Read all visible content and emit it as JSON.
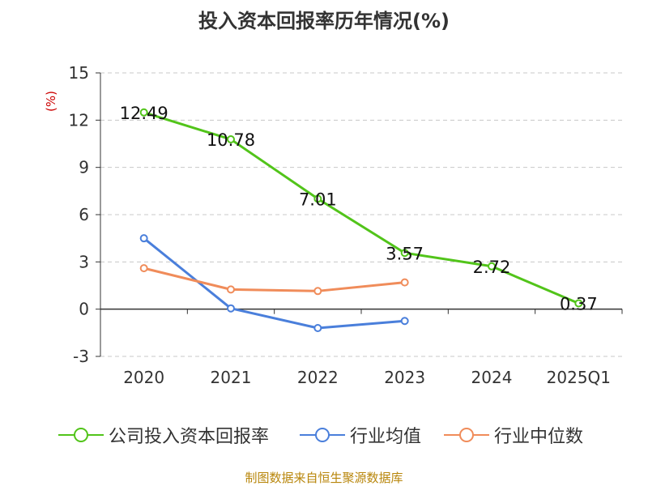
{
  "title": "投入资本回报率历年情况(%)",
  "source": "制图数据来自恒生聚源数据库",
  "chart_data": {
    "type": "line",
    "title": "投入资本回报率历年情况(%)",
    "ylabel": "(%)",
    "categories": [
      "2020",
      "2021",
      "2022",
      "2023",
      "2024",
      "2025Q1"
    ],
    "y_ticks": [
      15,
      12,
      9,
      6,
      3,
      0,
      -3
    ],
    "ylim": [
      -3,
      15
    ],
    "grid": true,
    "legend_position": "bottom",
    "series": [
      {
        "name": "公司投入资本回报率",
        "color": "#52c41a",
        "values": [
          12.49,
          10.78,
          7.01,
          3.57,
          2.72,
          0.37
        ],
        "labels": [
          "12.49",
          "10.78",
          "7.01",
          "3.57",
          "2.72",
          "0.37"
        ]
      },
      {
        "name": "行业均值",
        "color": "#4a7fdb",
        "values": [
          4.5,
          0.05,
          -1.2,
          -0.75,
          null,
          null
        ]
      },
      {
        "name": "行业中位数",
        "color": "#f08c5a",
        "values": [
          2.6,
          1.25,
          1.15,
          1.7,
          null,
          null
        ]
      }
    ]
  }
}
